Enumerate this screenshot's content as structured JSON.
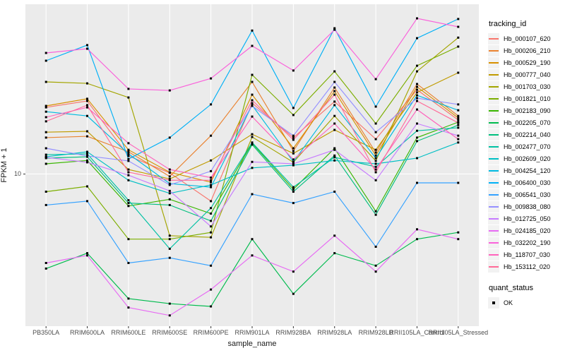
{
  "figure": {
    "background": "#FFFFFF",
    "panel_background": "#EBEBEB",
    "grid_color": "#FFFFFF",
    "point_color": "#000000",
    "tick_color": "#333333"
  },
  "axes": {
    "x_title": "sample_name",
    "y_title": "FPKM + 1",
    "y_ticks": [
      {
        "value": 10,
        "label": "10"
      }
    ]
  },
  "legend": {
    "tracking_title": "tracking_id",
    "quant_title": "quant_status",
    "quant_items": [
      {
        "label": "OK",
        "shape": "square"
      }
    ]
  },
  "chart_data": {
    "type": "line",
    "title": "",
    "xlabel": "sample_name",
    "ylabel": "FPKM + 1",
    "y_scale": "log10",
    "ylim": [
      0.75,
      180
    ],
    "grid": true,
    "legend_position": "right",
    "point_shape": "square",
    "categories": [
      "PB350LA",
      "RRIM600LA",
      "RRIM600LE",
      "RRIM600SE",
      "RRIM600PE",
      "RRIM901LA",
      "RRIM928BA",
      "RRIM928LA",
      "RRIM928LB",
      "RRII105LA_Control",
      "RRII105LA_Stressed"
    ],
    "series": [
      {
        "name": "Hb_000107_620",
        "color": "#F8766D",
        "quant_status": "OK",
        "values": [
          31.1,
          34.7,
          13.6,
          10.2,
          6.3,
          33.4,
          18.6,
          34.3,
          18.1,
          42,
          25.1
        ]
      },
      {
        "name": "Hb_000206_210",
        "color": "#EA8331",
        "quant_status": "OK",
        "values": [
          18.6,
          19,
          14.6,
          9.6,
          19.2,
          48,
          14.8,
          43.6,
          14.4,
          46.3,
          26.9
        ]
      },
      {
        "name": "Hb_000529_190",
        "color": "#D89000",
        "quant_status": "OK",
        "values": [
          31.9,
          36,
          15.1,
          10.3,
          8.7,
          38.6,
          15.5,
          41,
          13.7,
          44.1,
          26
        ]
      },
      {
        "name": "Hb_000777_040",
        "color": "#C09B00",
        "quant_status": "OK",
        "values": [
          20.4,
          20.7,
          10.8,
          9.2,
          12.6,
          19.7,
          14.2,
          21.2,
          15.1,
          40.1,
          56.1
        ]
      },
      {
        "name": "Hb_001703_030",
        "color": "#A3A500",
        "quant_status": "OK",
        "values": [
          48,
          46.8,
          36.8,
          3.5,
          3.4,
          18.8,
          12.2,
          26.9,
          12.5,
          57.4,
          102
        ]
      },
      {
        "name": "Hb_001821_010",
        "color": "#7CAE00",
        "quant_status": "OK",
        "values": [
          7.4,
          8.1,
          3.3,
          3.3,
          3.7,
          54.1,
          27.3,
          57.4,
          23.6,
          63.2,
          87.5
        ]
      },
      {
        "name": "Hb_002183_090",
        "color": "#39B600",
        "quant_status": "OK",
        "values": [
          11.9,
          12.6,
          5.8,
          6.5,
          5.1,
          16.9,
          7.7,
          15.5,
          5.3,
          18.6,
          24.2
        ]
      },
      {
        "name": "Hb_002205_070",
        "color": "#00BB4E",
        "quant_status": "OK",
        "values": [
          2,
          2.6,
          1.2,
          1.1,
          1.05,
          3.3,
          1.3,
          2.6,
          2.1,
          3.3,
          3.7
        ]
      },
      {
        "name": "Hb_002214_040",
        "color": "#00BF7D",
        "quant_status": "OK",
        "values": [
          13.1,
          13.4,
          6.1,
          5.9,
          4.5,
          16.5,
          7.4,
          13.7,
          5,
          17.5,
          23
        ]
      },
      {
        "name": "Hb_002477_070",
        "color": "#00C1A3",
        "quant_status": "OK",
        "values": [
          13.9,
          14.1,
          6.4,
          2.8,
          5.6,
          17.1,
          8,
          13.3,
          11.3,
          20.9,
          22
        ]
      },
      {
        "name": "Hb_002609_020",
        "color": "#00BFC4",
        "quant_status": "OK",
        "values": [
          13.4,
          14.6,
          9,
          7.2,
          8.3,
          11.1,
          11.6,
          12.6,
          11.9,
          13.1,
          17.1
        ]
      },
      {
        "name": "Hb_004254_120",
        "color": "#00BAE0",
        "quant_status": "OK",
        "values": [
          28.9,
          26.9,
          14.1,
          8.5,
          8,
          32.3,
          12.3,
          32.3,
          13.1,
          38.2,
          29.6
        ]
      },
      {
        "name": "Hb_006400_030",
        "color": "#00B0F6",
        "quant_status": "OK",
        "values": [
          68.8,
          89.7,
          12.9,
          18.6,
          32.7,
          115,
          30.8,
          119.6,
          31.5,
          101,
          140
        ]
      },
      {
        "name": "Hb_006541_030",
        "color": "#35A2FF",
        "quant_status": "OK",
        "values": [
          5.9,
          6.3,
          2.2,
          2.4,
          2.1,
          7.1,
          6.1,
          7.4,
          2.9,
          8.6,
          8.6
        ]
      },
      {
        "name": "Hb_009838_080",
        "color": "#9590FF",
        "quant_status": "OK",
        "values": [
          15.5,
          13.6,
          12.5,
          8.3,
          10.5,
          31.9,
          19.2,
          48,
          20.4,
          36.4,
          32.7
        ]
      },
      {
        "name": "Hb_012725_050",
        "color": "#C77CFF",
        "quant_status": "OK",
        "values": [
          13.3,
          12.2,
          9.8,
          7.5,
          4.1,
          12.3,
          11.9,
          15.1,
          9,
          23.6,
          19.2
        ]
      },
      {
        "name": "Hb_024185_020",
        "color": "#E76BF3",
        "quant_status": "OK",
        "values": [
          2.2,
          2.5,
          1.03,
          0.9,
          1.4,
          2.5,
          1.9,
          3.5,
          1.9,
          3.9,
          3.3
        ]
      },
      {
        "name": "Hb_032202_190",
        "color": "#FA62DB",
        "quant_status": "OK",
        "values": [
          78.5,
          84.4,
          42.6,
          41.5,
          50.9,
          88.6,
          58.2,
          116.7,
          50.3,
          141.6,
          122.5
        ]
      },
      {
        "name": "Hb_118707_030",
        "color": "#FF62BC",
        "quant_status": "OK",
        "values": [
          26.3,
          31.1,
          16.9,
          10.8,
          9.4,
          26.6,
          12.8,
          23.6,
          10.8,
          30,
          18.1
        ]
      },
      {
        "name": "Hb_153112_020",
        "color": "#FF6A98",
        "quant_status": "OK",
        "values": [
          24.5,
          32.3,
          10.3,
          9,
          9,
          35.1,
          17.9,
          38.6,
          10.3,
          34.7,
          23.9
        ]
      }
    ]
  }
}
